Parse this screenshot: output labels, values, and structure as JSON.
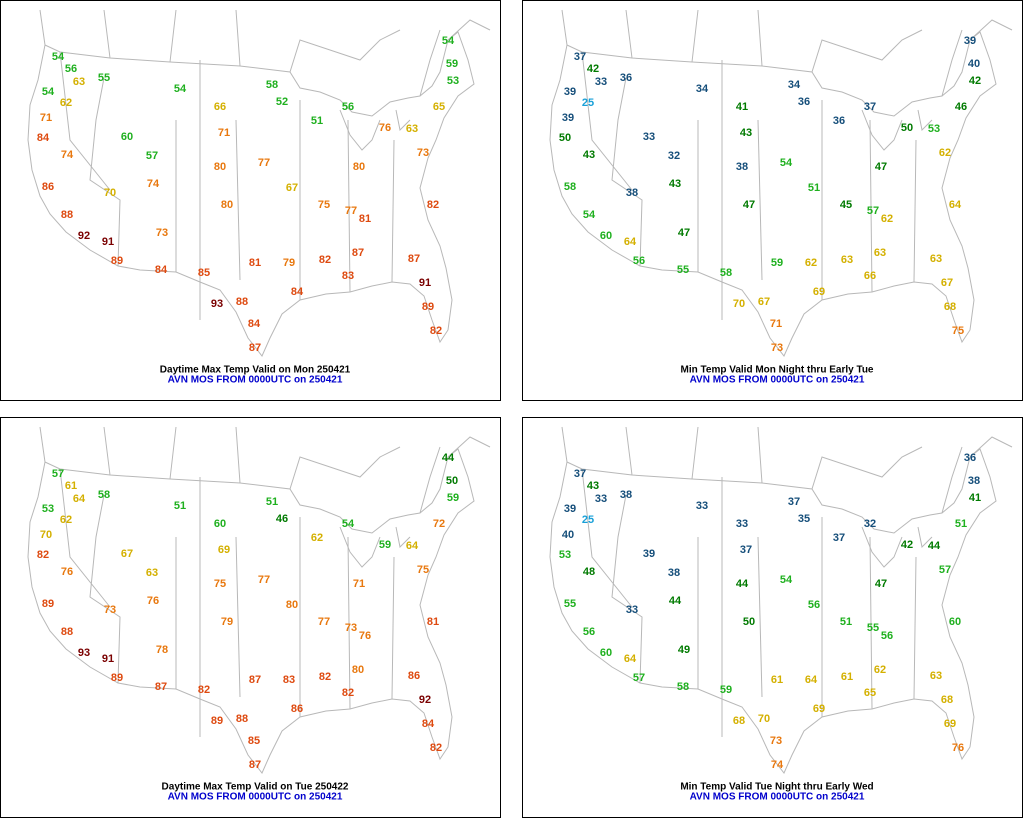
{
  "color_scale": [
    {
      "color": "#19a0d8"
    },
    {
      "from": 32,
      "color": "#154e7a"
    },
    {
      "from": 41,
      "color": "#007a00"
    },
    {
      "from": 51,
      "color": "#1fb01f"
    },
    {
      "from": 61,
      "color": "#d4b000"
    },
    {
      "from": 71,
      "color": "#e8780f"
    },
    {
      "from": 81,
      "color": "#de4a10"
    },
    {
      "from": 91,
      "color": "#7a0000"
    }
  ],
  "panels": [
    {
      "title": "Daytime Max Temp Valid on Mon 250421",
      "subtitle": "AVN MOS FROM 0000UTC on 250421",
      "values": [
        54,
        56,
        63,
        54,
        62,
        71,
        84,
        74,
        86,
        88,
        92,
        91,
        89,
        55,
        54,
        58,
        60,
        57,
        70,
        74,
        73,
        84,
        85,
        93,
        88,
        84,
        87,
        66,
        71,
        80,
        80,
        81,
        79,
        84,
        82,
        83,
        77,
        67,
        75,
        77,
        81,
        87,
        80,
        76,
        63,
        65,
        59,
        54,
        73,
        82,
        87,
        91,
        89,
        82,
        56,
        51,
        52,
        53
      ]
    },
    {
      "title": "Min Temp Valid Mon Night thru Early Tue",
      "subtitle": "AVN MOS FROM 0000UTC on 250421",
      "values": [
        37,
        42,
        33,
        39,
        25,
        39,
        50,
        43,
        58,
        54,
        60,
        64,
        56,
        36,
        34,
        34,
        33,
        32,
        38,
        43,
        47,
        55,
        58,
        70,
        67,
        71,
        73,
        41,
        43,
        38,
        47,
        59,
        62,
        69,
        63,
        66,
        54,
        51,
        45,
        57,
        62,
        63,
        47,
        50,
        53,
        46,
        40,
        39,
        62,
        64,
        63,
        67,
        68,
        75,
        37,
        36,
        36,
        42
      ]
    },
    {
      "title": "Daytime Max Temp Valid on Tue 250422",
      "subtitle": "AVN MOS FROM 0000UTC on 250421",
      "values": [
        57,
        61,
        64,
        53,
        62,
        70,
        82,
        76,
        89,
        88,
        93,
        91,
        89,
        58,
        51,
        51,
        67,
        63,
        73,
        76,
        78,
        87,
        82,
        89,
        88,
        85,
        87,
        60,
        69,
        75,
        79,
        87,
        83,
        86,
        82,
        82,
        77,
        80,
        77,
        73,
        76,
        80,
        71,
        59,
        64,
        72,
        50,
        44,
        75,
        81,
        86,
        92,
        84,
        82,
        54,
        62,
        46,
        59
      ]
    },
    {
      "title": "Min Temp Valid Tue Night thru Early Wed",
      "subtitle": "AVN MOS FROM 0000UTC on 250421",
      "values": [
        37,
        43,
        33,
        39,
        25,
        40,
        53,
        48,
        55,
        56,
        60,
        64,
        57,
        38,
        33,
        37,
        39,
        38,
        33,
        44,
        49,
        58,
        59,
        68,
        70,
        73,
        74,
        33,
        37,
        44,
        50,
        61,
        64,
        69,
        61,
        65,
        54,
        56,
        51,
        55,
        56,
        62,
        47,
        42,
        44,
        51,
        38,
        36,
        57,
        60,
        63,
        68,
        69,
        76,
        32,
        37,
        35,
        41
      ]
    }
  ]
}
